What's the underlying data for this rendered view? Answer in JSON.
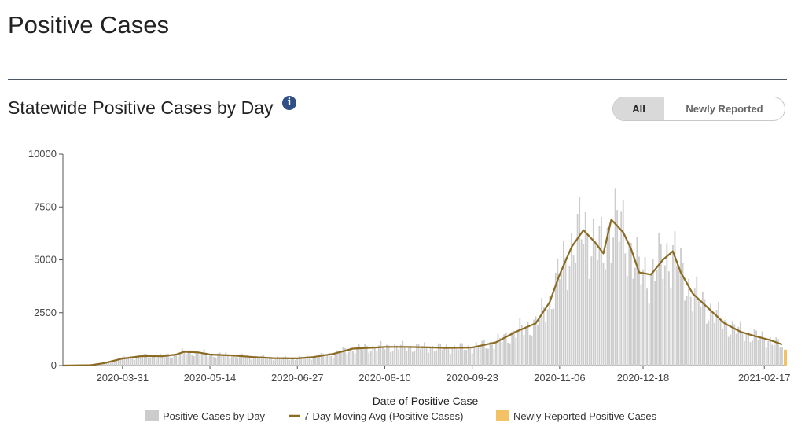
{
  "page": {
    "title": "Positive Cases"
  },
  "section": {
    "heading": "Statewide Positive Cases by Day",
    "info_icon": "info-icon",
    "info_glyph": "i"
  },
  "toggle": {
    "options": [
      "All",
      "Newly Reported"
    ],
    "selected": "All"
  },
  "colors": {
    "bars": "#cccccc",
    "moving_avg": "#8b6a22",
    "newly_reported": "#f2c264"
  },
  "chart_data": {
    "type": "bar",
    "xlabel": "Date of Positive Case",
    "ylabel": "",
    "ylim": [
      0,
      10000
    ],
    "y_ticks": [
      0,
      2500,
      5000,
      7500,
      10000
    ],
    "x_range": [
      "2020-03-01",
      "2021-02-28"
    ],
    "x_ticks": [
      "2020-03-31",
      "2020-05-14",
      "2020-06-27",
      "2020-08-10",
      "2020-09-23",
      "2020-11-06",
      "2020-12-18",
      "2021-02-17"
    ],
    "legend": [
      "Positive Cases by Day",
      "7-Day Moving Avg (Positive Cases)",
      "Newly Reported Positive Cases"
    ],
    "legend_position": "bottom",
    "series": [
      {
        "name": "Positive Cases by Day",
        "kind": "bar",
        "points": [
          [
            "2020-03-01",
            0
          ],
          [
            "2020-03-15",
            20
          ],
          [
            "2020-03-22",
            120
          ],
          [
            "2020-03-31",
            330
          ],
          [
            "2020-04-10",
            450
          ],
          [
            "2020-04-20",
            440
          ],
          [
            "2020-04-27",
            520
          ],
          [
            "2020-05-01",
            650
          ],
          [
            "2020-05-08",
            620
          ],
          [
            "2020-05-14",
            520
          ],
          [
            "2020-05-25",
            480
          ],
          [
            "2020-06-05",
            400
          ],
          [
            "2020-06-15",
            350
          ],
          [
            "2020-06-27",
            340
          ],
          [
            "2020-07-05",
            400
          ],
          [
            "2020-07-15",
            550
          ],
          [
            "2020-07-25",
            800
          ],
          [
            "2020-08-05",
            850
          ],
          [
            "2020-08-10",
            880
          ],
          [
            "2020-08-20",
            880
          ],
          [
            "2020-09-01",
            860
          ],
          [
            "2020-09-10",
            830
          ],
          [
            "2020-09-23",
            850
          ],
          [
            "2020-10-05",
            1100
          ],
          [
            "2020-10-15",
            1600
          ],
          [
            "2020-10-25",
            2000
          ],
          [
            "2020-11-01",
            3000
          ],
          [
            "2020-11-06",
            4300
          ],
          [
            "2020-11-12",
            5600
          ],
          [
            "2020-11-18",
            6400
          ],
          [
            "2020-11-24",
            5800
          ],
          [
            "2020-11-28",
            5300
          ],
          [
            "2020-12-02",
            6900
          ],
          [
            "2020-12-08",
            6300
          ],
          [
            "2020-12-12",
            5500
          ],
          [
            "2020-12-16",
            4400
          ],
          [
            "2020-12-22",
            4300
          ],
          [
            "2020-12-28",
            5000
          ],
          [
            "2021-01-02",
            5400
          ],
          [
            "2021-01-06",
            4400
          ],
          [
            "2021-01-12",
            3400
          ],
          [
            "2021-01-20",
            2700
          ],
          [
            "2021-01-28",
            2000
          ],
          [
            "2021-02-05",
            1600
          ],
          [
            "2021-02-12",
            1400
          ],
          [
            "2021-02-20",
            1200
          ],
          [
            "2021-02-26",
            900
          ]
        ]
      },
      {
        "name": "7-Day Moving Avg (Positive Cases)",
        "kind": "line",
        "points": [
          [
            "2020-03-01",
            0
          ],
          [
            "2020-03-15",
            20
          ],
          [
            "2020-03-22",
            120
          ],
          [
            "2020-03-31",
            330
          ],
          [
            "2020-04-10",
            450
          ],
          [
            "2020-04-20",
            440
          ],
          [
            "2020-04-27",
            520
          ],
          [
            "2020-05-01",
            650
          ],
          [
            "2020-05-08",
            620
          ],
          [
            "2020-05-14",
            520
          ],
          [
            "2020-05-25",
            480
          ],
          [
            "2020-06-05",
            400
          ],
          [
            "2020-06-15",
            350
          ],
          [
            "2020-06-27",
            340
          ],
          [
            "2020-07-05",
            400
          ],
          [
            "2020-07-15",
            550
          ],
          [
            "2020-07-25",
            800
          ],
          [
            "2020-08-05",
            850
          ],
          [
            "2020-08-10",
            880
          ],
          [
            "2020-08-20",
            880
          ],
          [
            "2020-09-01",
            860
          ],
          [
            "2020-09-10",
            830
          ],
          [
            "2020-09-23",
            850
          ],
          [
            "2020-10-05",
            1100
          ],
          [
            "2020-10-15",
            1600
          ],
          [
            "2020-10-25",
            2000
          ],
          [
            "2020-11-01",
            3000
          ],
          [
            "2020-11-06",
            4300
          ],
          [
            "2020-11-12",
            5600
          ],
          [
            "2020-11-18",
            6400
          ],
          [
            "2020-11-24",
            5800
          ],
          [
            "2020-11-28",
            5300
          ],
          [
            "2020-12-02",
            6900
          ],
          [
            "2020-12-08",
            6300
          ],
          [
            "2020-12-12",
            5500
          ],
          [
            "2020-12-16",
            4400
          ],
          [
            "2020-12-22",
            4300
          ],
          [
            "2020-12-28",
            5000
          ],
          [
            "2021-01-02",
            5400
          ],
          [
            "2021-01-06",
            4400
          ],
          [
            "2021-01-12",
            3400
          ],
          [
            "2021-01-20",
            2700
          ],
          [
            "2021-01-28",
            2000
          ],
          [
            "2021-02-05",
            1600
          ],
          [
            "2021-02-12",
            1400
          ],
          [
            "2021-02-20",
            1200
          ],
          [
            "2021-02-26",
            1000
          ]
        ]
      },
      {
        "name": "Newly Reported Positive Cases",
        "kind": "bar",
        "points": [
          [
            "2021-02-28",
            750
          ]
        ]
      }
    ]
  }
}
